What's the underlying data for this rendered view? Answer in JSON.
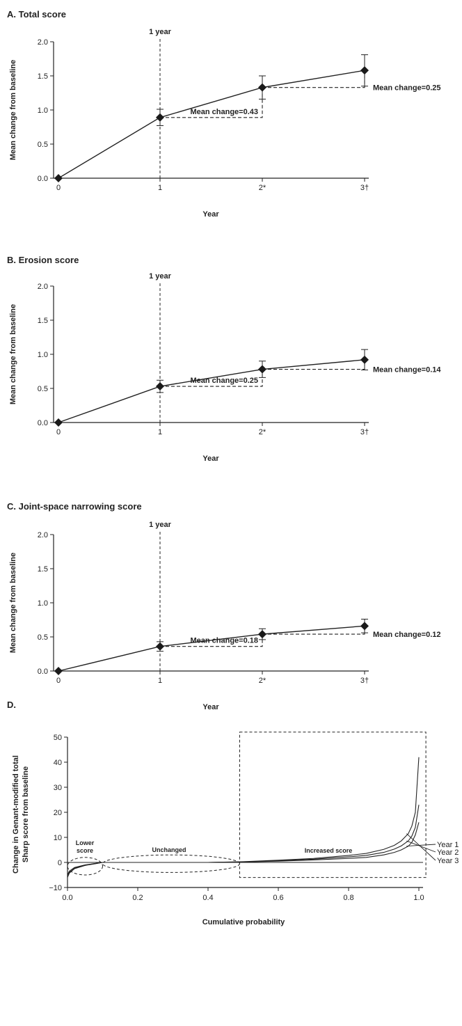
{
  "chart_data": [
    {
      "type": "line",
      "title": "A. Total score",
      "xlabel": "Year",
      "ylabel": "Mean change from baseline",
      "categories": [
        "0",
        "1",
        "2*",
        "3†"
      ],
      "values": [
        0,
        0.89,
        1.33,
        1.58
      ],
      "error": [
        0,
        0.12,
        0.17,
        0.23
      ],
      "ylim": [
        0,
        2.0
      ],
      "yticks": [
        "0.0",
        "0.5",
        "1.0",
        "1.5",
        "2.0"
      ],
      "marker_label": "1 year",
      "annotations": [
        {
          "text": "Mean change=0.43",
          "from": 1,
          "to": 2
        },
        {
          "text": "Mean change=0.25",
          "from": 2,
          "to": 3
        }
      ]
    },
    {
      "type": "line",
      "title": "B. Erosion score",
      "xlabel": "Year",
      "ylabel": "Mean change from baseline",
      "categories": [
        "0",
        "1",
        "2*",
        "3†"
      ],
      "values": [
        0,
        0.53,
        0.78,
        0.92
      ],
      "error": [
        0,
        0.09,
        0.12,
        0.15
      ],
      "ylim": [
        0,
        2.0
      ],
      "yticks": [
        "0.0",
        "0.5",
        "1.0",
        "1.5",
        "2.0"
      ],
      "marker_label": "1 year",
      "annotations": [
        {
          "text": "Mean change=0.25",
          "from": 1,
          "to": 2
        },
        {
          "text": "Mean change=0.14",
          "from": 2,
          "to": 3
        }
      ]
    },
    {
      "type": "line",
      "title": "C. Joint-space narrowing score",
      "xlabel": "Year",
      "ylabel": "Mean change from baseline",
      "categories": [
        "0",
        "1",
        "2*",
        "3†"
      ],
      "values": [
        0,
        0.36,
        0.54,
        0.66
      ],
      "error": [
        0,
        0.07,
        0.08,
        0.1
      ],
      "ylim": [
        0,
        2.0
      ],
      "yticks": [
        "0.0",
        "0.5",
        "1.0",
        "1.5",
        "2.0"
      ],
      "marker_label": "1 year",
      "annotations": [
        {
          "text": "Mean change=0.18",
          "from": 1,
          "to": 2
        },
        {
          "text": "Mean change=0.12",
          "from": 2,
          "to": 3
        }
      ]
    },
    {
      "type": "line",
      "title": "D.",
      "xlabel": "Cumulative probability",
      "ylabel": [
        "Change in Genant-modified total",
        "Sharp score from baseline"
      ],
      "xlim": [
        0,
        1.0
      ],
      "ylim": [
        -10,
        50
      ],
      "xticks": [
        "0.0",
        "0.2",
        "0.4",
        "0.6",
        "0.8",
        "1.0"
      ],
      "yticks": [
        "−10",
        "0",
        "10",
        "20",
        "30",
        "40",
        "50"
      ],
      "series": [
        {
          "name": "Year 1",
          "x": [
            0,
            0.005,
            0.02,
            0.05,
            0.08,
            0.1,
            0.2,
            0.3,
            0.4,
            0.5,
            0.6,
            0.7,
            0.8,
            0.85,
            0.9,
            0.93,
            0.95,
            0.97,
            0.98,
            0.99,
            1.0
          ],
          "y": [
            -5,
            -3.5,
            -2,
            -1,
            -0.4,
            0,
            0,
            0,
            0,
            0.2,
            0.5,
            1,
            1.6,
            2,
            3,
            4,
            5,
            6.5,
            8,
            11,
            16
          ]
        },
        {
          "name": "Year 2",
          "x": [
            0,
            0.005,
            0.02,
            0.05,
            0.08,
            0.1,
            0.2,
            0.3,
            0.4,
            0.5,
            0.6,
            0.7,
            0.8,
            0.85,
            0.9,
            0.93,
            0.95,
            0.97,
            0.98,
            0.99,
            1.0
          ],
          "y": [
            -5.5,
            -4,
            -2.3,
            -1.1,
            -0.4,
            0,
            0,
            0,
            0,
            0.2,
            0.7,
            1.3,
            2.2,
            2.8,
            4,
            5.3,
            6.6,
            8.6,
            10.5,
            14,
            23
          ]
        },
        {
          "name": "Year 3",
          "x": [
            0,
            0.005,
            0.02,
            0.05,
            0.08,
            0.1,
            0.2,
            0.3,
            0.4,
            0.5,
            0.6,
            0.7,
            0.8,
            0.85,
            0.9,
            0.93,
            0.95,
            0.97,
            0.98,
            0.99,
            1.0
          ],
          "y": [
            -6,
            -4.3,
            -2.5,
            -1.2,
            -0.5,
            0,
            0,
            0,
            0,
            0.3,
            0.9,
            1.6,
            2.8,
            3.6,
            5.2,
            6.8,
            8.6,
            11.5,
            14.5,
            20,
            42
          ]
        }
      ],
      "regions": [
        {
          "label": [
            "Lower",
            "score"
          ],
          "x": [
            0,
            0.1
          ],
          "y": [
            -5,
            2
          ]
        },
        {
          "label": [
            "Unchanged"
          ],
          "x": [
            0.1,
            0.49
          ],
          "y": [
            -4,
            3
          ]
        },
        {
          "label": [
            "Increased score"
          ],
          "x": [
            0.49,
            1.02
          ],
          "y": [
            -6,
            52
          ]
        }
      ]
    }
  ]
}
